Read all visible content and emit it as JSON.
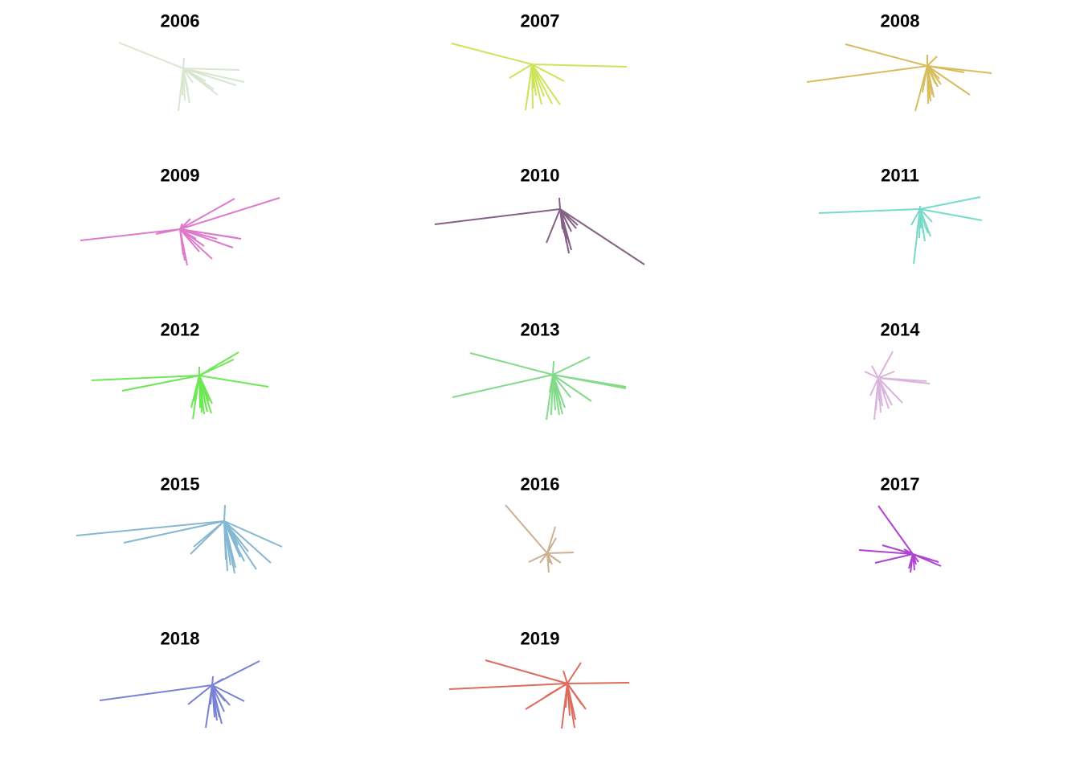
{
  "chart_data": {
    "type": "line",
    "chart_style": "small-multiples of radial line segments (spokes) from a common origin",
    "title": "",
    "xlabel": "",
    "ylabel": "",
    "axes_visible": false,
    "grid": false,
    "legend": "none",
    "layout": {
      "columns": 3,
      "rows": 5
    },
    "panels": [
      {
        "label": "2006",
        "color": "#d9e6cf",
        "segments": [
          [
            -80,
            32
          ],
          [
            70,
            -2
          ],
          [
            76,
            -17
          ],
          [
            43,
            -33
          ],
          [
            66,
            -21
          ],
          [
            -6,
            -53
          ],
          [
            2,
            -40
          ],
          [
            8,
            -43
          ],
          [
            12,
            -18
          ],
          [
            18,
            -14
          ],
          [
            6,
            -28
          ],
          [
            1,
            13
          ],
          [
            -1,
            -34
          ],
          [
            28,
            -16
          ],
          [
            38,
            -26
          ]
        ]
      },
      {
        "label": "2007",
        "color": "#cfe35a",
        "segments": [
          [
            -100,
            26
          ],
          [
            118,
            -3
          ],
          [
            40,
            -21
          ],
          [
            35,
            -50
          ],
          [
            -28,
            -17
          ],
          [
            -8,
            -57
          ],
          [
            -6,
            -44
          ],
          [
            1,
            -55
          ],
          [
            2,
            -30
          ],
          [
            15,
            -40
          ],
          [
            25,
            -49
          ],
          [
            12,
            -50
          ],
          [
            5,
            -39
          ]
        ]
      },
      {
        "label": "2008",
        "color": "#d8bd5e",
        "segments": [
          [
            -102,
            27
          ],
          [
            -150,
            -20
          ],
          [
            80,
            -9
          ],
          [
            46,
            -8
          ],
          [
            53,
            -36
          ],
          [
            -15,
            -56
          ],
          [
            0,
            14
          ],
          [
            12,
            12
          ],
          [
            -6,
            -33
          ],
          [
            4,
            -44
          ],
          [
            13,
            -26
          ],
          [
            17,
            -23
          ],
          [
            8,
            -39
          ],
          [
            1,
            -47
          ],
          [
            10,
            -22
          ],
          [
            5,
            -30
          ],
          [
            3,
            -41
          ],
          [
            15,
            -16
          ],
          [
            6,
            -36
          ]
        ]
      },
      {
        "label": "2009",
        "color": "#de7acb",
        "segments": [
          [
            -124,
            -14
          ],
          [
            -30,
            -6
          ],
          [
            124,
            39
          ],
          [
            68,
            38
          ],
          [
            76,
            -12
          ],
          [
            72,
            -11
          ],
          [
            66,
            -23
          ],
          [
            40,
            -37
          ],
          [
            9,
            -45
          ],
          [
            6,
            -39
          ],
          [
            13,
            13
          ],
          [
            3,
            7
          ],
          [
            20,
            -12
          ],
          [
            46,
            -12
          ],
          [
            30,
            -21
          ],
          [
            24,
            -28
          ],
          [
            4,
            -32
          ]
        ]
      },
      {
        "label": "2010",
        "color": "#856185",
        "segments": [
          [
            -156,
            -19
          ],
          [
            105,
            -69
          ],
          [
            -17,
            -42
          ],
          [
            11,
            -55
          ],
          [
            14,
            -51
          ],
          [
            -1,
            14
          ],
          [
            20,
            -24
          ],
          [
            22,
            -20
          ],
          [
            5,
            -30
          ],
          [
            9,
            -37
          ],
          [
            8,
            -42
          ],
          [
            3,
            -25
          ],
          [
            12,
            -44
          ],
          [
            14,
            -28
          ]
        ]
      },
      {
        "label": "2011",
        "color": "#78dac9",
        "segments": [
          [
            -126,
            -5
          ],
          [
            75,
            15
          ],
          [
            77,
            -14
          ],
          [
            -8,
            -68
          ],
          [
            -11,
            -20
          ],
          [
            -1,
            -36
          ],
          [
            4,
            -30
          ],
          [
            10,
            -30
          ],
          [
            13,
            -34
          ],
          [
            6,
            -40
          ],
          [
            1,
            -24
          ],
          [
            0,
            4
          ],
          [
            15,
            -16
          ],
          [
            8,
            -26
          ],
          [
            -4,
            -30
          ],
          [
            3,
            -21
          ]
        ]
      },
      {
        "label": "2012",
        "color": "#6ee755",
        "segments": [
          [
            -134,
            -6
          ],
          [
            -96,
            -19
          ],
          [
            49,
            29
          ],
          [
            43,
            20
          ],
          [
            86,
            -14
          ],
          [
            -8,
            -54
          ],
          [
            0,
            11
          ],
          [
            1,
            -40
          ],
          [
            3,
            -46
          ],
          [
            5,
            -43
          ],
          [
            10,
            -45
          ],
          [
            15,
            -47
          ],
          [
            9,
            -42
          ],
          [
            6,
            -48
          ],
          [
            -10,
            -40
          ],
          [
            -7,
            -32
          ],
          [
            16,
            -35
          ],
          [
            12,
            -32
          ]
        ]
      },
      {
        "label": "2013",
        "color": "#82da8a",
        "segments": [
          [
            -125,
            -28
          ],
          [
            -103,
            27
          ],
          [
            46,
            22
          ],
          [
            91,
            -15
          ],
          [
            91,
            -17
          ],
          [
            48,
            -33
          ],
          [
            12,
            -49
          ],
          [
            -8,
            -56
          ],
          [
            -2,
            -50
          ],
          [
            8,
            -50
          ],
          [
            15,
            -41
          ],
          [
            22,
            -28
          ],
          [
            2,
            -32
          ],
          [
            -4,
            -22
          ],
          [
            5,
            -24
          ],
          [
            10,
            -38
          ],
          [
            1,
            17
          ],
          [
            3,
            -44
          ]
        ]
      },
      {
        "label": "2014",
        "color": "#dbb4dd",
        "segments": [
          [
            -17,
            8
          ],
          [
            18,
            33
          ],
          [
            20,
            8
          ],
          [
            64,
            -7
          ],
          [
            60,
            -4
          ],
          [
            -5,
            -52
          ],
          [
            -3,
            -40
          ],
          [
            13,
            -38
          ],
          [
            30,
            -31
          ],
          [
            17,
            -34
          ],
          [
            5,
            -35
          ],
          [
            -10,
            -22
          ],
          [
            3,
            -43
          ],
          [
            8,
            -20
          ],
          [
            -8,
            15
          ],
          [
            1,
            -28
          ]
        ]
      },
      {
        "label": "2015",
        "color": "#85b8d0",
        "segments": [
          [
            -184,
            -18
          ],
          [
            -125,
            -27
          ],
          [
            72,
            -32
          ],
          [
            58,
            -52
          ],
          [
            40,
            -60
          ],
          [
            -42,
            -41
          ],
          [
            -38,
            -32
          ],
          [
            13,
            -65
          ],
          [
            4,
            -62
          ],
          [
            1,
            20
          ],
          [
            20,
            -45
          ],
          [
            25,
            -50
          ],
          [
            8,
            -55
          ],
          [
            6,
            -40
          ],
          [
            30,
            -38
          ],
          [
            14,
            -58
          ],
          [
            2,
            -48
          ],
          [
            17,
            -30
          ]
        ]
      },
      {
        "label": "2016",
        "color": "#ccb094",
        "segments": [
          [
            -52,
            60
          ],
          [
            -23,
            -11
          ],
          [
            33,
            1
          ],
          [
            10,
            33
          ],
          [
            2,
            -24
          ],
          [
            -9,
            -12
          ],
          [
            14,
            -10
          ],
          [
            11,
            19
          ],
          [
            6,
            -14
          ],
          [
            17,
            -12
          ],
          [
            3,
            -12
          ]
        ]
      },
      {
        "label": "2017",
        "color": "#b042d2",
        "segments": [
          [
            -43,
            60
          ],
          [
            -67,
            5
          ],
          [
            -47,
            -11
          ],
          [
            35,
            -15
          ],
          [
            32,
            -10
          ],
          [
            -38,
            11
          ],
          [
            -3,
            -23
          ],
          [
            -5,
            -18
          ],
          [
            2,
            -20
          ],
          [
            -11,
            6
          ],
          [
            7,
            -10
          ],
          [
            14,
            -6
          ],
          [
            4,
            -13
          ]
        ]
      },
      {
        "label": "2018",
        "color": "#7a80d5",
        "segments": [
          [
            -140,
            -19
          ],
          [
            59,
            30
          ],
          [
            40,
            -20
          ],
          [
            15,
            -33
          ],
          [
            22,
            -25
          ],
          [
            -8,
            -53
          ],
          [
            -30,
            -24
          ],
          [
            12,
            -48
          ],
          [
            6,
            -44
          ],
          [
            1,
            11
          ],
          [
            3,
            -40
          ],
          [
            9,
            -40
          ],
          [
            16,
            -20
          ],
          [
            14,
            8
          ],
          [
            -2,
            -24
          ],
          [
            5,
            -35
          ]
        ]
      },
      {
        "label": "2019",
        "color": "#dd6b5e",
        "segments": [
          [
            -147,
            -7
          ],
          [
            -102,
            29
          ],
          [
            77,
            1
          ],
          [
            17,
            26
          ],
          [
            -52,
            -32
          ],
          [
            23,
            -32
          ],
          [
            -7,
            -56
          ],
          [
            9,
            -55
          ],
          [
            3,
            -40
          ],
          [
            -2,
            -30
          ],
          [
            -5,
            16
          ],
          [
            18,
            -26
          ],
          [
            -27,
            -16
          ],
          [
            10,
            -45
          ],
          [
            6,
            -36
          ],
          [
            -3,
            -28
          ]
        ]
      }
    ]
  }
}
